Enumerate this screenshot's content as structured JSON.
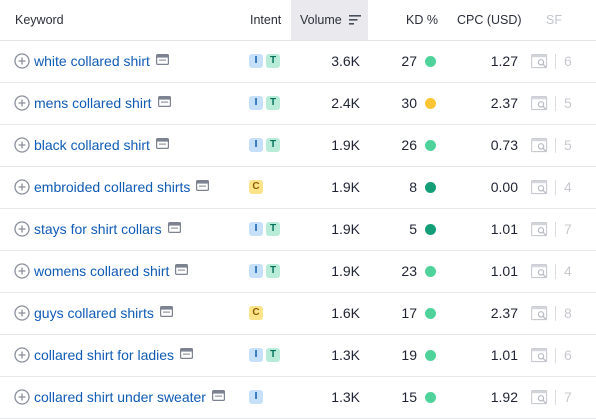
{
  "columns": {
    "keyword": "Keyword",
    "intent": "Intent",
    "volume": "Volume",
    "kd": "KD %",
    "cpc": "CPC (USD)",
    "sf": "SF"
  },
  "colors": {
    "link": "#0f5bb5",
    "kd_green": "#50d39a",
    "kd_dark_green": "#139e77",
    "kd_yellow": "#fcc534"
  },
  "rows": [
    {
      "keyword": "white collared shirt",
      "intents": [
        "I",
        "T"
      ],
      "volume": "3.6K",
      "kd": "27",
      "kd_color": "#50d39a",
      "cpc": "1.27",
      "sf": "6"
    },
    {
      "keyword": "mens collared shirt",
      "intents": [
        "I",
        "T"
      ],
      "volume": "2.4K",
      "kd": "30",
      "kd_color": "#fcc534",
      "cpc": "2.37",
      "sf": "5"
    },
    {
      "keyword": "black collared shirt",
      "intents": [
        "I",
        "T"
      ],
      "volume": "1.9K",
      "kd": "26",
      "kd_color": "#50d39a",
      "cpc": "0.73",
      "sf": "5"
    },
    {
      "keyword": "embroided collared shirts",
      "intents": [
        "C"
      ],
      "volume": "1.9K",
      "kd": "8",
      "kd_color": "#139e77",
      "cpc": "0.00",
      "sf": "4"
    },
    {
      "keyword": "stays for shirt collars",
      "intents": [
        "I",
        "T"
      ],
      "volume": "1.9K",
      "kd": "5",
      "kd_color": "#139e77",
      "cpc": "1.01",
      "sf": "7"
    },
    {
      "keyword": "womens collared shirt",
      "intents": [
        "I",
        "T"
      ],
      "volume": "1.9K",
      "kd": "23",
      "kd_color": "#50d39a",
      "cpc": "1.01",
      "sf": "4"
    },
    {
      "keyword": "guys collared shirts",
      "intents": [
        "C"
      ],
      "volume": "1.6K",
      "kd": "17",
      "kd_color": "#50d39a",
      "cpc": "2.37",
      "sf": "8"
    },
    {
      "keyword": "collared shirt for ladies",
      "intents": [
        "I",
        "T"
      ],
      "volume": "1.3K",
      "kd": "19",
      "kd_color": "#50d39a",
      "cpc": "1.01",
      "sf": "6"
    },
    {
      "keyword": "collared shirt under sweater",
      "intents": [
        "I"
      ],
      "volume": "1.3K",
      "kd": "15",
      "kd_color": "#50d39a",
      "cpc": "1.92",
      "sf": "7"
    }
  ]
}
